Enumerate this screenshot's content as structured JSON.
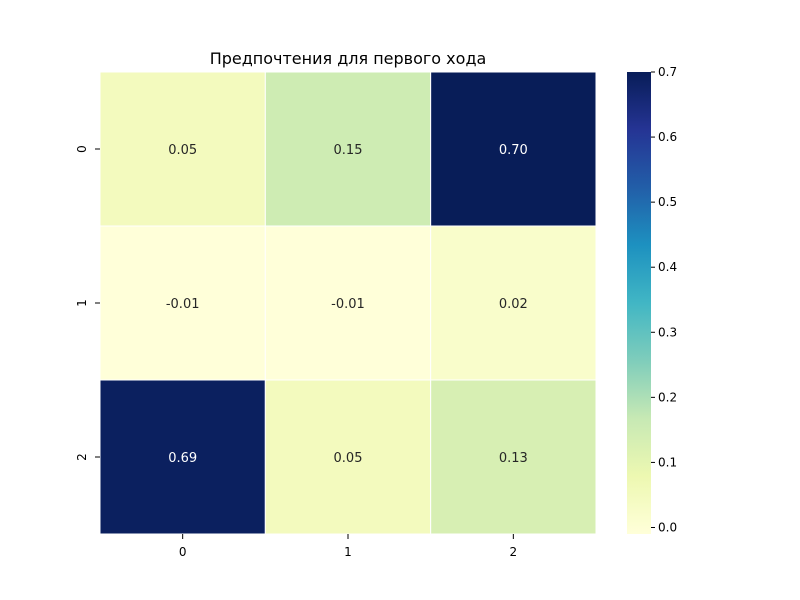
{
  "chart_data": {
    "type": "heatmap",
    "title": "Предпочтения для первого хода",
    "x_categories": [
      "0",
      "1",
      "2"
    ],
    "y_categories": [
      "0",
      "1",
      "2"
    ],
    "values": [
      [
        0.05,
        0.15,
        0.7
      ],
      [
        -0.01,
        -0.01,
        0.02
      ],
      [
        0.69,
        0.05,
        0.13
      ]
    ],
    "annotations": [
      [
        "0.05",
        "0.15",
        "0.70"
      ],
      [
        "-0.01",
        "-0.01",
        "0.02"
      ],
      [
        "0.69",
        "0.05",
        "0.13"
      ]
    ],
    "colormap": "YlGnBu",
    "vmin": -0.01,
    "vmax": 0.7,
    "colorbar_ticks": [
      "0.0",
      "0.1",
      "0.2",
      "0.3",
      "0.4",
      "0.5",
      "0.6",
      "0.7"
    ],
    "colors": {
      "ylgnbu": [
        "#ffffd9",
        "#edf8b1",
        "#c7e9b4",
        "#7fcdbb",
        "#41b6c4",
        "#1d91c0",
        "#225ea8",
        "#253494",
        "#081d58"
      ],
      "annot_light": "#ffffff",
      "annot_dark": "#262626"
    },
    "grid": false,
    "legend": "colorbar-right"
  }
}
